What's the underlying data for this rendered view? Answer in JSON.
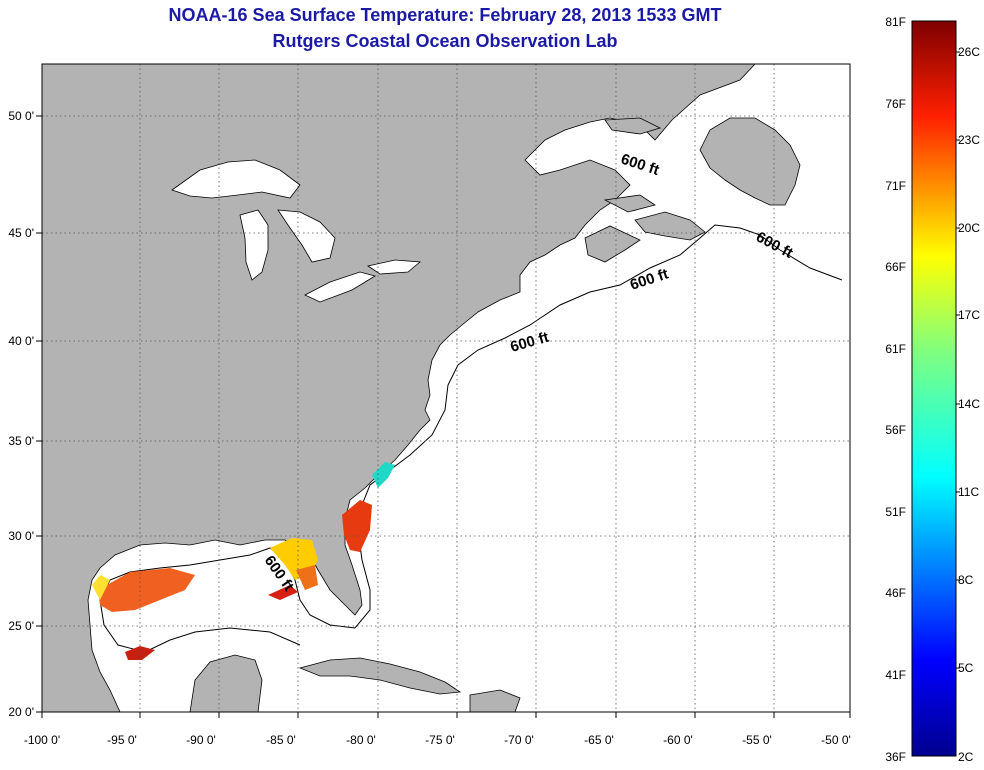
{
  "title": "NOAA-16 Sea Surface Temperature:  February 28, 2013 1533 GMT",
  "subtitle": "Rutgers Coastal Ocean Observation Lab",
  "lon_ticks": [
    "-100 0'",
    "-95 0'",
    "-90 0'",
    "-85 0'",
    "-80 0'",
    "-75 0'",
    "-70 0'",
    "-65 0'",
    "-60 0'",
    "-55 0'",
    "-50 0'"
  ],
  "lat_ticks": [
    "50 0'",
    "45 0'",
    "40 0'",
    "35 0'",
    "30 0'",
    "25 0'",
    "20 0'"
  ],
  "isobath_labels": [
    "600 ft",
    "600 ft",
    "600 ft",
    "600 ft",
    "600 ft"
  ],
  "colorbar": {
    "fahrenheit": [
      "81F",
      "76F",
      "71F",
      "66F",
      "61F",
      "56F",
      "51F",
      "46F",
      "41F",
      "36F"
    ],
    "celsius": [
      "26C",
      "23C",
      "20C",
      "17C",
      "14C",
      "11C",
      "8C",
      "5C",
      "2C"
    ]
  },
  "colors": {
    "land": "#b3b3b3",
    "ocean": "#ffffff",
    "title": "#1a1aa6",
    "grid": "#555555"
  }
}
